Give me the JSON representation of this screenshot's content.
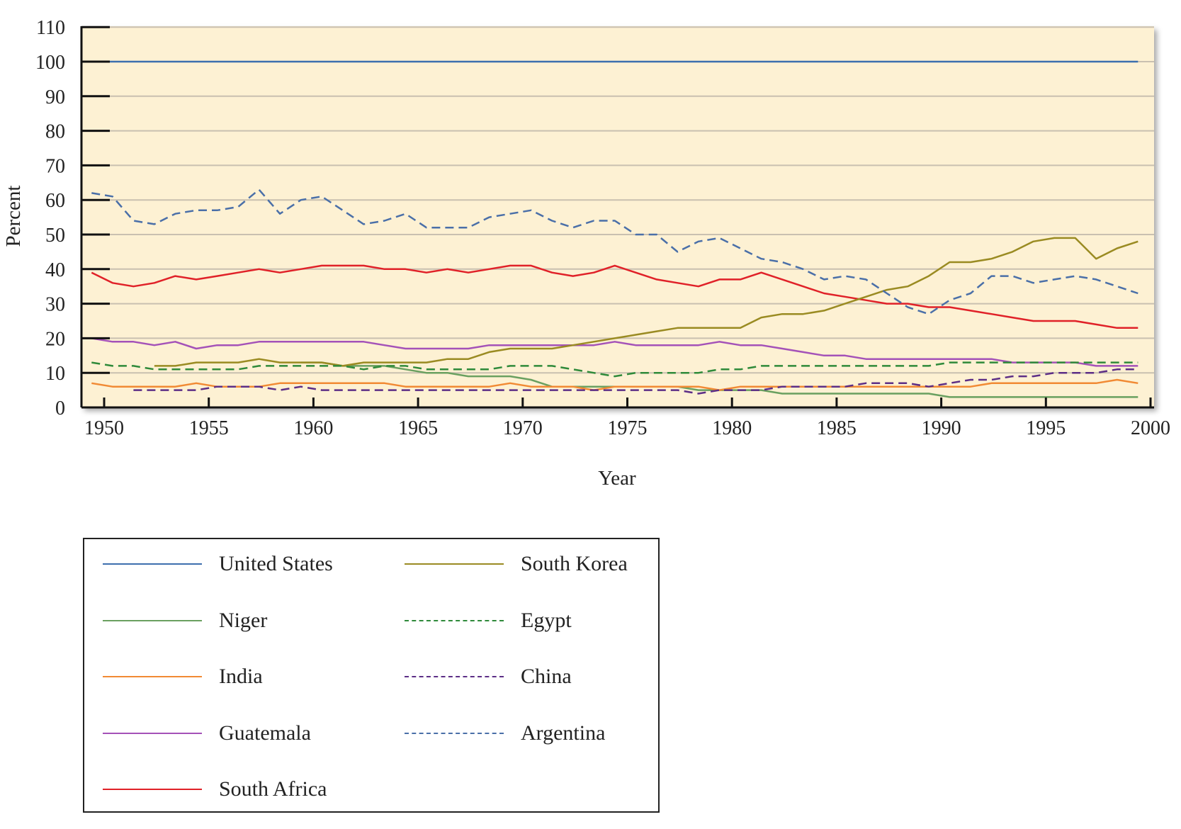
{
  "chart_data": {
    "type": "line",
    "title": "",
    "xlabel": "Year",
    "ylabel": "Percent",
    "xlim": [
      1950,
      2000
    ],
    "ylim": [
      0,
      110
    ],
    "x_ticks": [
      "1950",
      "1955",
      "1960",
      "1965",
      "1970",
      "1975",
      "1980",
      "1985",
      "1990",
      "1995",
      "2000"
    ],
    "y_ticks": [
      "0",
      "10",
      "20",
      "30",
      "40",
      "50",
      "60",
      "70",
      "80",
      "90",
      "100",
      "110"
    ],
    "grid": true,
    "background": "#fdf1d3",
    "legend_placement": "bottom-left, below chart",
    "series": [
      {
        "name": "United States",
        "color": "#3d6fae",
        "dash": false,
        "start": 1950,
        "values": [
          100,
          100,
          100,
          100,
          100,
          100,
          100,
          100,
          100,
          100,
          100,
          100,
          100,
          100,
          100,
          100,
          100,
          100,
          100,
          100,
          100,
          100,
          100,
          100,
          100,
          100,
          100,
          100,
          100,
          100,
          100,
          100,
          100,
          100,
          100,
          100,
          100,
          100,
          100,
          100,
          100,
          100,
          100,
          100,
          100,
          100,
          100,
          100,
          100,
          100,
          100
        ]
      },
      {
        "name": "Niger",
        "color": "#6aa060",
        "dash": false,
        "start": 1960,
        "values": [
          13,
          13,
          12,
          12,
          12,
          11,
          10,
          10,
          9,
          9,
          9,
          8,
          6,
          6,
          6,
          6,
          6,
          6,
          6,
          5,
          5,
          5,
          5,
          4,
          4,
          4,
          4,
          4,
          4,
          4,
          4,
          3,
          3,
          3,
          3,
          3,
          3,
          3,
          3,
          3,
          3
        ]
      },
      {
        "name": "India",
        "color": "#f18a34",
        "dash": false,
        "start": 1950,
        "values": [
          7,
          6,
          6,
          6,
          6,
          7,
          6,
          6,
          6,
          7,
          7,
          7,
          7,
          7,
          7,
          6,
          6,
          6,
          6,
          6,
          7,
          6,
          6,
          6,
          5,
          6,
          6,
          6,
          6,
          6,
          5,
          6,
          6,
          6,
          6,
          6,
          6,
          6,
          6,
          6,
          6,
          6,
          6,
          7,
          7,
          7,
          7,
          7,
          7,
          8,
          7
        ]
      },
      {
        "name": "Guatemala",
        "color": "#a452b8",
        "dash": false,
        "start": 1950,
        "values": [
          20,
          19,
          19,
          18,
          19,
          17,
          18,
          18,
          19,
          19,
          19,
          19,
          19,
          19,
          18,
          17,
          17,
          17,
          17,
          18,
          18,
          18,
          18,
          18,
          18,
          19,
          18,
          18,
          18,
          18,
          19,
          18,
          18,
          17,
          16,
          15,
          15,
          14,
          14,
          14,
          14,
          14,
          14,
          14,
          13,
          13,
          13,
          13,
          12,
          12,
          12
        ]
      },
      {
        "name": "South Africa",
        "color": "#e02128",
        "dash": false,
        "start": 1950,
        "values": [
          39,
          36,
          35,
          36,
          38,
          37,
          38,
          39,
          40,
          39,
          40,
          41,
          41,
          41,
          40,
          40,
          39,
          40,
          39,
          40,
          41,
          41,
          39,
          38,
          39,
          41,
          39,
          37,
          36,
          35,
          37,
          37,
          39,
          37,
          35,
          33,
          32,
          31,
          30,
          30,
          29,
          29,
          28,
          27,
          26,
          25,
          25,
          25,
          24,
          23,
          23
        ]
      },
      {
        "name": "South Korea",
        "color": "#9a8b22",
        "dash": false,
        "start": 1953,
        "values": [
          12,
          12,
          13,
          13,
          13,
          14,
          13,
          13,
          13,
          12,
          13,
          13,
          13,
          13,
          14,
          14,
          16,
          17,
          17,
          17,
          18,
          19,
          20,
          21,
          22,
          23,
          23,
          23,
          23,
          26,
          27,
          27,
          28,
          30,
          32,
          34,
          35,
          38,
          42,
          42,
          43,
          45,
          48,
          49,
          49,
          43,
          46,
          48
        ]
      },
      {
        "name": "Egypt",
        "color": "#2f8a3a",
        "dash": true,
        "start": 1950,
        "values": [
          13,
          12,
          12,
          11,
          11,
          11,
          11,
          11,
          12,
          12,
          12,
          12,
          12,
          11,
          12,
          12,
          11,
          11,
          11,
          11,
          12,
          12,
          12,
          11,
          10,
          9,
          10,
          10,
          10,
          10,
          11,
          11,
          12,
          12,
          12,
          12,
          12,
          12,
          12,
          12,
          12,
          13,
          13,
          13,
          13,
          13,
          13,
          13,
          13,
          13,
          13
        ]
      },
      {
        "name": "China",
        "color": "#5c2e86",
        "dash": true,
        "start": 1952,
        "values": [
          5,
          5,
          5,
          5,
          6,
          6,
          6,
          5,
          6,
          5,
          5,
          5,
          5,
          5,
          5,
          5,
          5,
          5,
          5,
          5,
          5,
          5,
          5,
          5,
          5,
          5,
          5,
          4,
          5,
          5,
          5,
          6,
          6,
          6,
          6,
          7,
          7,
          7,
          6,
          7,
          8,
          8,
          9,
          9,
          10,
          10,
          10,
          11,
          11
        ]
      },
      {
        "name": "Argentina",
        "color": "#4a6fa8",
        "dash": true,
        "start": 1950,
        "values": [
          62,
          61,
          54,
          53,
          56,
          57,
          57,
          58,
          63,
          56,
          60,
          61,
          57,
          53,
          54,
          56,
          52,
          52,
          52,
          55,
          56,
          57,
          54,
          52,
          54,
          54,
          50,
          50,
          45,
          48,
          49,
          46,
          43,
          42,
          40,
          37,
          38,
          37,
          33,
          29,
          27,
          31,
          33,
          38,
          38,
          36,
          37,
          38,
          37,
          35,
          33
        ]
      }
    ]
  }
}
